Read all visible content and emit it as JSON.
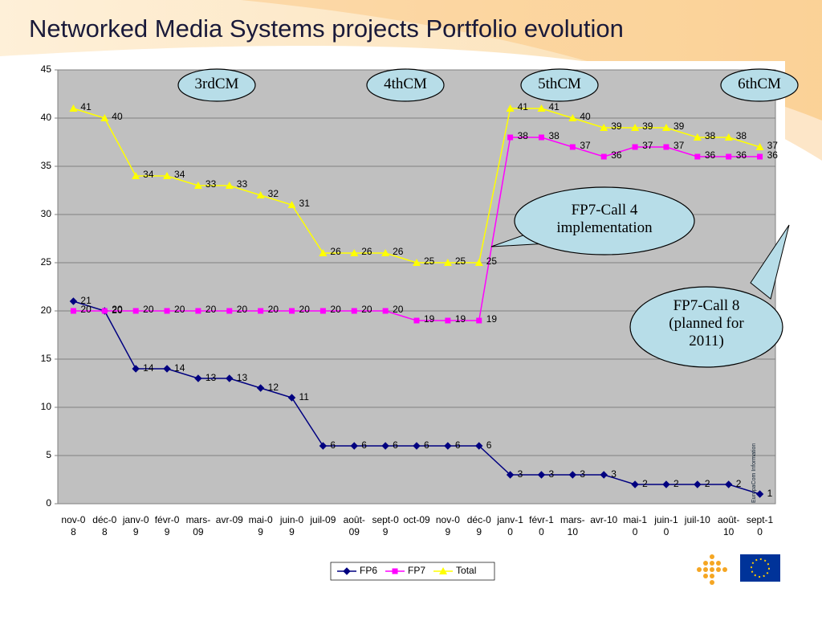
{
  "title": "Networked Media Systems projects Portfolio evolution",
  "side_text": "EuropaCom Information",
  "chart_data": {
    "type": "line",
    "categories": [
      "nov-08",
      "déc-08",
      "janv-09",
      "févr-09",
      "mars-09",
      "avr-09",
      "mai-09",
      "juin-09",
      "juil-09",
      "août-09",
      "sept-09",
      "oct-09",
      "nov-09",
      "déc-09",
      "janv-10",
      "févr-10",
      "mars-10",
      "avr-10",
      "mai-10",
      "juin-10",
      "juil-10",
      "août-10",
      "sept-10"
    ],
    "series": [
      {
        "name": "FP6",
        "color": "#000080",
        "marker": "diamond",
        "values": [
          21,
          20,
          14,
          14,
          13,
          13,
          12,
          11,
          6,
          6,
          6,
          6,
          6,
          6,
          3,
          3,
          3,
          3,
          2,
          2,
          2,
          2,
          1
        ]
      },
      {
        "name": "FP7",
        "color": "#ff00ff",
        "marker": "square",
        "values": [
          20,
          20,
          20,
          20,
          20,
          20,
          20,
          20,
          20,
          20,
          20,
          19,
          19,
          19,
          38,
          38,
          37,
          36,
          37,
          37,
          36,
          36,
          36
        ]
      },
      {
        "name": "Total",
        "color": "#ffff00",
        "marker": "triangle",
        "values": [
          41,
          40,
          34,
          34,
          33,
          33,
          32,
          31,
          26,
          26,
          26,
          25,
          25,
          25,
          41,
          41,
          40,
          39,
          39,
          39,
          38,
          38,
          37
        ]
      }
    ],
    "ylim": [
      0,
      45
    ],
    "yticks": [
      0,
      5,
      10,
      15,
      20,
      25,
      30,
      35,
      40,
      45
    ],
    "grid": true,
    "legend": "bottom",
    "annotations": [
      "3rdCM",
      "4thCM",
      "5thCM",
      "6thCM"
    ],
    "callouts": [
      "FP7-Call 4 implementation",
      "FP7-Call 8 (planned for 2011)"
    ]
  }
}
